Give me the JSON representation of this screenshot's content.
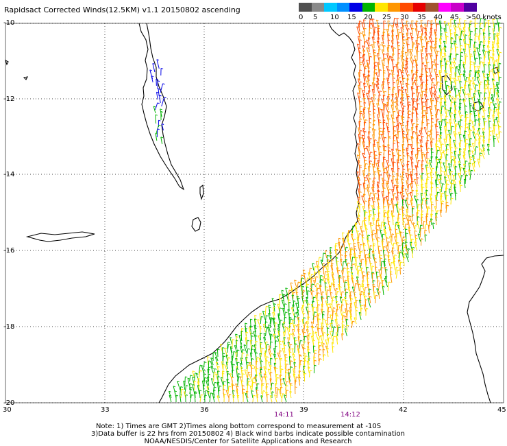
{
  "title": "Rapidsact Corrected Winds(12.5KM) v1.1 20150802 ascending",
  "legend": {
    "colors": [
      "#505050",
      "#8a8a8a",
      "#00c8ff",
      "#0090ff",
      "#0000e6",
      "#00b400",
      "#ffe600",
      "#ff9600",
      "#ff4b00",
      "#e60000",
      "#a0522d",
      "#ff00ff",
      "#c800c8",
      "#5000a0"
    ],
    "ticks": [
      "0",
      "5",
      "10",
      "15",
      "20",
      "25",
      "30",
      "35",
      "40",
      "45",
      ">50 knots"
    ]
  },
  "axes": {
    "lat_labels": [
      "-10",
      "-12",
      "-14",
      "-16",
      "-18",
      "-20"
    ],
    "lon_labels": [
      "30",
      "33",
      "36",
      "39",
      "42",
      "45"
    ]
  },
  "times": [
    "14:11",
    "14:12"
  ],
  "notes": [
    "Note: 1) Times are GMT 2)Times along bottom correspond to measurement at -10S",
    "3)Data buffer is 22 hrs from 20150802 4) Black wind barbs indicate possible contamination",
    "NOAA/NESDIS/Center for Satellite Applications and Research"
  ],
  "colors": {
    "gridline": "#000000",
    "coastline": "#000000",
    "time_label": "#800080"
  }
}
